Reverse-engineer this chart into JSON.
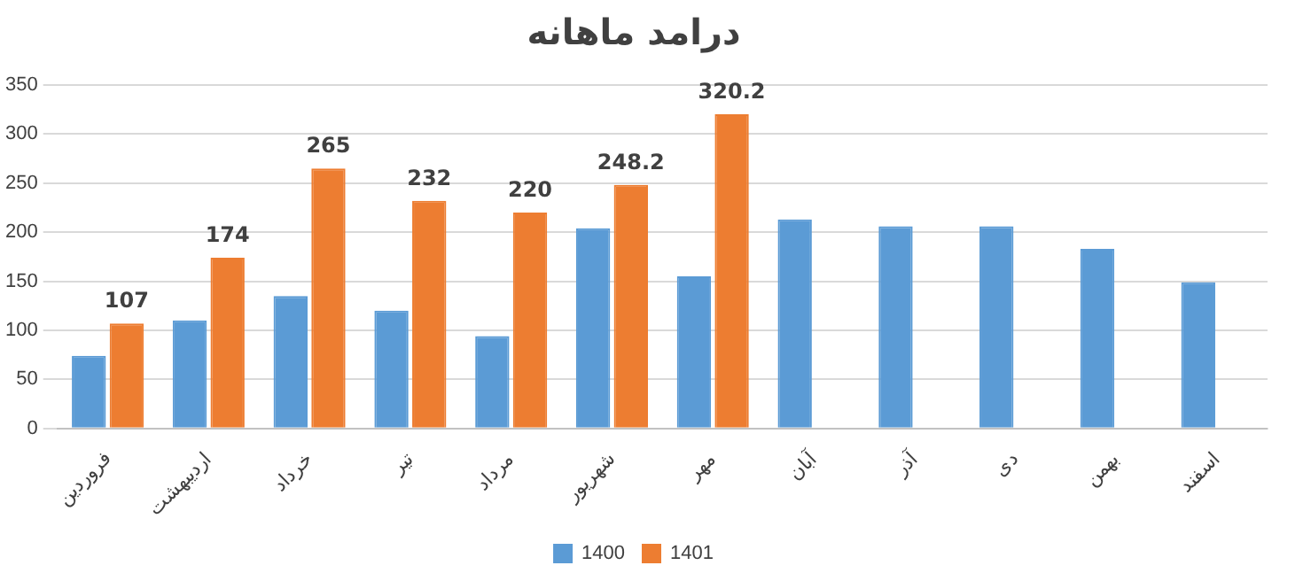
{
  "chart_data": {
    "type": "bar",
    "title": "درامد ماهانه",
    "categories": [
      "فروردین",
      "اردیبهشت",
      "خرداد",
      "تیر",
      "مرداد",
      "شهریور",
      "مهر",
      "آبان",
      "آذر",
      "دی",
      "بهمن",
      "اسفند"
    ],
    "series": [
      {
        "name": "1400",
        "color": "#5b9bd5",
        "values": [
          74,
          110,
          135,
          120,
          94,
          204,
          155,
          213,
          206,
          206,
          183,
          149
        ]
      },
      {
        "name": "1401",
        "color": "#ed7d31",
        "values": [
          107,
          174,
          265,
          232,
          220,
          248.2,
          320.2,
          null,
          null,
          null,
          null,
          null
        ],
        "value_labels": [
          "107",
          "174",
          "265",
          "232",
          "220",
          "248.2",
          "320.2",
          null,
          null,
          null,
          null,
          null
        ]
      }
    ],
    "ylim": [
      0,
      350
    ],
    "yticks": [
      0,
      50,
      100,
      150,
      200,
      250,
      300,
      350
    ],
    "grid": "y",
    "legend": "bottom"
  }
}
